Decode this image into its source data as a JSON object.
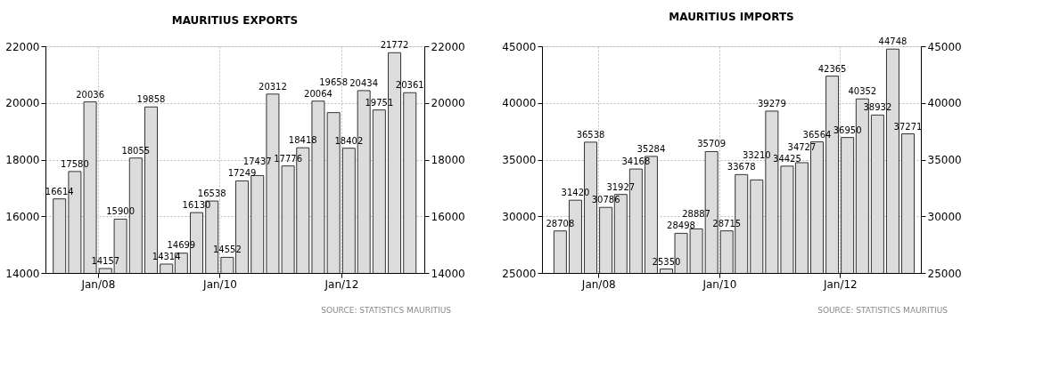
{
  "chart_data": [
    {
      "type": "bar",
      "title": "MAURITIUS EXPORTS",
      "x": [
        "2007-05-15",
        "2007-08-15",
        "2007-11-15",
        "2008-02-15",
        "2008-05-15",
        "2008-08-15",
        "2008-11-15",
        "2009-02-15",
        "2009-05-15",
        "2009-08-15",
        "2009-11-15",
        "2010-02-15",
        "2010-05-15",
        "2010-08-15",
        "2010-11-15",
        "2011-02-15",
        "2011-05-15",
        "2011-08-15",
        "2011-11-15",
        "2012-02-15",
        "2012-05-15",
        "2012-08-15",
        "2012-11-15",
        "2013-02-15"
      ],
      "values": [
        16614,
        17580,
        20036,
        14157,
        15900,
        18055,
        19858,
        14314,
        14699,
        16130,
        16538,
        14552,
        17249,
        17437,
        20312,
        17776,
        18418,
        20064,
        19658,
        18402,
        20434,
        19751,
        21772,
        20361
      ],
      "color": "#dcdcdc",
      "data_labels": true,
      "grid": true,
      "xlim": [
        "2007-02-20",
        "2013-05-13"
      ],
      "xticks": [
        {
          "value": "2008-01-01",
          "label": "Jan/08"
        },
        {
          "value": "2010-01-01",
          "label": "Jan/10"
        },
        {
          "value": "2012-01-01",
          "label": "Jan/12"
        }
      ],
      "ylim": [
        14000,
        22000
      ],
      "yticks": [
        14000,
        16000,
        18000,
        20000,
        22000
      ],
      "y2lim": [
        14000,
        22000
      ],
      "y2ticks": [
        14000,
        16000,
        18000,
        20000,
        22000
      ],
      "annotations": [
        "SOURCE: STATISTICS MAURITIUS"
      ]
    },
    {
      "type": "bar",
      "title": "MAURITIUS IMPORTS",
      "x": [
        "2007-05-15",
        "2007-08-15",
        "2007-11-15",
        "2008-02-15",
        "2008-05-15",
        "2008-08-15",
        "2008-11-15",
        "2009-02-15",
        "2009-05-15",
        "2009-08-15",
        "2009-11-15",
        "2010-02-15",
        "2010-05-15",
        "2010-08-15",
        "2010-11-15",
        "2011-02-15",
        "2011-05-15",
        "2011-08-15",
        "2011-11-15",
        "2012-02-15",
        "2012-05-15",
        "2012-08-15",
        "2012-11-15",
        "2013-02-15"
      ],
      "values": [
        28708,
        31420,
        36538,
        30786,
        31927,
        34168,
        35284,
        25350,
        28498,
        28887,
        35709,
        28715,
        33678,
        33210,
        39279,
        34425,
        34727,
        36564,
        42365,
        36950,
        40352,
        38932,
        44748,
        37271
      ],
      "color": "#dcdcdc",
      "data_labels": true,
      "grid": true,
      "xlim": [
        "2007-01-25",
        "2013-05-04"
      ],
      "xticks": [
        {
          "value": "2008-01-01",
          "label": "Jan/08"
        },
        {
          "value": "2010-01-01",
          "label": "Jan/10"
        },
        {
          "value": "2012-01-01",
          "label": "Jan/12"
        }
      ],
      "ylim": [
        25000,
        45000
      ],
      "yticks": [
        25000,
        30000,
        35000,
        40000,
        45000
      ],
      "y2lim": [
        25000,
        45000
      ],
      "y2ticks": [
        25000,
        30000,
        35000,
        40000,
        45000
      ],
      "annotations": [
        "SOURCE: STATISTICS MAURITIUS"
      ]
    }
  ]
}
